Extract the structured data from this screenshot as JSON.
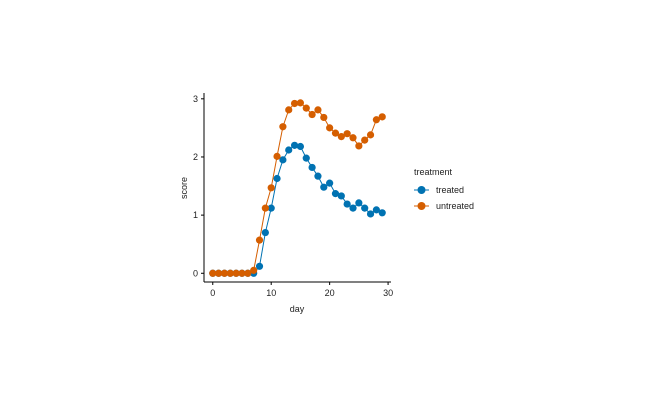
{
  "chart_data": {
    "type": "line",
    "xlabel": "day",
    "ylabel": "score",
    "xlim": [
      -1.5,
      30.5
    ],
    "ylim": [
      -0.15,
      3.1
    ],
    "x_ticks": [
      "0",
      "10",
      "20",
      "30"
    ],
    "y_ticks": [
      "0",
      "1",
      "2",
      "3"
    ],
    "grid": false,
    "legend": {
      "title": "treatment",
      "position": "right"
    },
    "x": [
      0,
      1,
      2,
      3,
      4,
      5,
      6,
      7,
      8,
      9,
      10,
      11,
      12,
      13,
      14,
      15,
      16,
      17,
      18,
      19,
      20,
      21,
      22,
      23,
      24,
      25,
      26,
      27,
      28,
      29
    ],
    "series": [
      {
        "name": "treated",
        "color": "#0072B2",
        "values": [
          0,
          0,
          0,
          0,
          0,
          0,
          0,
          0,
          0.12,
          0.7,
          1.12,
          1.63,
          1.95,
          2.12,
          2.2,
          2.18,
          1.98,
          1.82,
          1.67,
          1.48,
          1.55,
          1.37,
          1.33,
          1.19,
          1.12,
          1.21,
          1.12,
          1.02,
          1.09,
          1.04
        ]
      },
      {
        "name": "untreated",
        "color": "#D55E00",
        "values": [
          0,
          0,
          0,
          0,
          0,
          0,
          0,
          0.05,
          0.57,
          1.12,
          1.47,
          2.01,
          2.52,
          2.81,
          2.92,
          2.93,
          2.84,
          2.73,
          2.81,
          2.68,
          2.5,
          2.41,
          2.35,
          2.4,
          2.33,
          2.19,
          2.29,
          2.38,
          2.64,
          2.69
        ]
      }
    ]
  }
}
